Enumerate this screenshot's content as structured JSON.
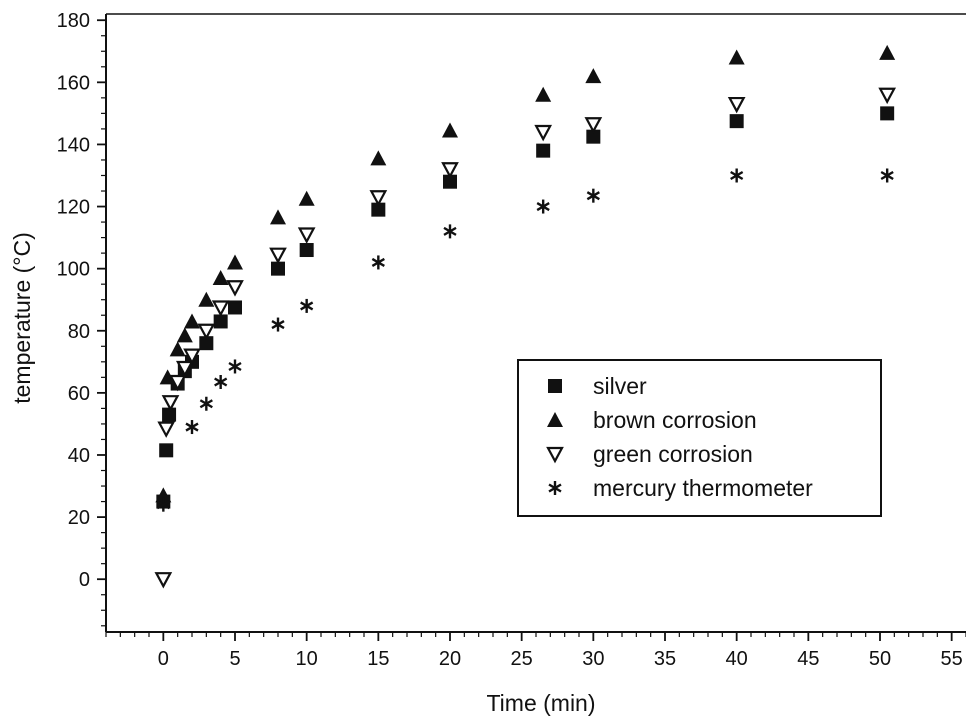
{
  "chart_data": {
    "type": "scatter",
    "title": "",
    "xlabel": "Time (min)",
    "ylabel": "temperature (°C)",
    "xlim": [
      -4,
      56
    ],
    "ylim": [
      -17,
      182
    ],
    "x_ticks": [
      0,
      5,
      10,
      15,
      20,
      25,
      30,
      35,
      40,
      45,
      50,
      55
    ],
    "y_ticks": [
      0,
      20,
      40,
      60,
      80,
      100,
      120,
      140,
      160,
      180
    ],
    "x_minor_step": 1,
    "y_minor_step": 5,
    "grid": false,
    "legend_position": "center-right",
    "series": [
      {
        "name": "silver",
        "marker": "square-filled",
        "color": "#111111",
        "points": [
          [
            0,
            25
          ],
          [
            0.2,
            41.5
          ],
          [
            0.4,
            53
          ],
          [
            1,
            63
          ],
          [
            1.5,
            67
          ],
          [
            2,
            70
          ],
          [
            3,
            76
          ],
          [
            4,
            83
          ],
          [
            5,
            87.5
          ],
          [
            8,
            100
          ],
          [
            10,
            106
          ],
          [
            15,
            119
          ],
          [
            20,
            128
          ],
          [
            26.5,
            138
          ],
          [
            30,
            142.5
          ],
          [
            40,
            147.5
          ],
          [
            50.5,
            150
          ]
        ]
      },
      {
        "name": "brown corrosion",
        "marker": "triangle-up-filled",
        "color": "#111111",
        "points": [
          [
            0,
            27
          ],
          [
            0.3,
            65
          ],
          [
            1,
            74
          ],
          [
            1.5,
            78.5
          ],
          [
            2,
            83
          ],
          [
            3,
            90
          ],
          [
            4,
            97
          ],
          [
            5,
            102
          ],
          [
            8,
            116.5
          ],
          [
            10,
            122.5
          ],
          [
            15,
            135.5
          ],
          [
            20,
            144.5
          ],
          [
            26.5,
            156
          ],
          [
            30,
            162
          ],
          [
            40,
            168
          ],
          [
            50.5,
            169.5
          ]
        ]
      },
      {
        "name": "green corrosion",
        "marker": "triangle-down-open",
        "color": "#111111",
        "points": [
          [
            0,
            0
          ],
          [
            0.2,
            48.5
          ],
          [
            0.5,
            57
          ],
          [
            1,
            63.5
          ],
          [
            1.5,
            68
          ],
          [
            2,
            72
          ],
          [
            3,
            80
          ],
          [
            4,
            87.5
          ],
          [
            5,
            94
          ],
          [
            8,
            104.5
          ],
          [
            10,
            111
          ],
          [
            15,
            123
          ],
          [
            20,
            132
          ],
          [
            26.5,
            144
          ],
          [
            30,
            146.5
          ],
          [
            40,
            153
          ],
          [
            50.5,
            156
          ]
        ]
      },
      {
        "name": "mercury thermometer",
        "marker": "asterisk",
        "color": "#111111",
        "points": [
          [
            0,
            24
          ],
          [
            2,
            49
          ],
          [
            3,
            56.5
          ],
          [
            4,
            63.5
          ],
          [
            5,
            68.5
          ],
          [
            8,
            82
          ],
          [
            10,
            88
          ],
          [
            15,
            102
          ],
          [
            20,
            112
          ],
          [
            26.5,
            120
          ],
          [
            30,
            123.5
          ],
          [
            40,
            130
          ],
          [
            50.5,
            130
          ]
        ]
      }
    ]
  }
}
